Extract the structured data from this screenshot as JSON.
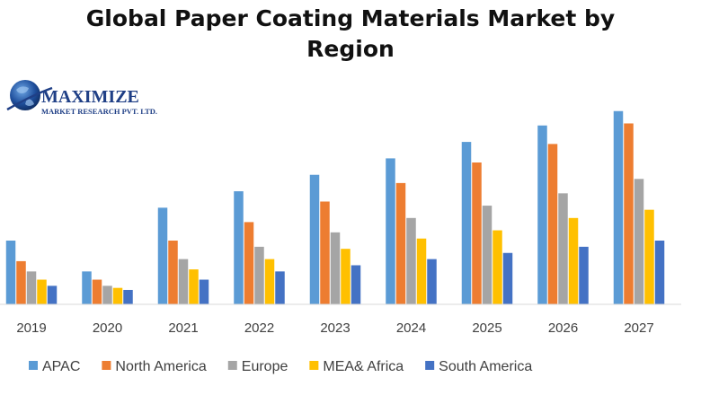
{
  "logo": {
    "name": "MAXIMIZE",
    "subtitle": "MARKET RESEARCH PVT. LTD.",
    "icon": "globe-icon"
  },
  "chart_data": {
    "type": "bar",
    "title_lines": [
      "Global Paper Coating Materials Market by",
      "Region"
    ],
    "title": "Global Paper Coating Materials Market by Region",
    "xlabel": "",
    "ylabel": "",
    "ylim": [
      0,
      100
    ],
    "grid": false,
    "legend_position": "bottom",
    "categories": [
      "2019",
      "2020",
      "2021",
      "2022",
      "2023",
      "2024",
      "2025",
      "2026",
      "2027"
    ],
    "series": [
      {
        "name": "APAC",
        "color": "#5b9bd5",
        "values": [
          31,
          16,
          47,
          55,
          63,
          71,
          79,
          87,
          94
        ]
      },
      {
        "name": "North America",
        "color": "#ed7d31",
        "values": [
          21,
          12,
          31,
          40,
          50,
          59,
          69,
          78,
          88
        ]
      },
      {
        "name": "Europe",
        "color": "#a5a5a5",
        "values": [
          16,
          9,
          22,
          28,
          35,
          42,
          48,
          54,
          61
        ]
      },
      {
        "name": "MEA& Africa",
        "color": "#ffc000",
        "values": [
          12,
          8,
          17,
          22,
          27,
          32,
          36,
          42,
          46
        ]
      },
      {
        "name": "South America",
        "color": "#4472c4",
        "values": [
          9,
          7,
          12,
          16,
          19,
          22,
          25,
          28,
          31
        ]
      }
    ]
  }
}
